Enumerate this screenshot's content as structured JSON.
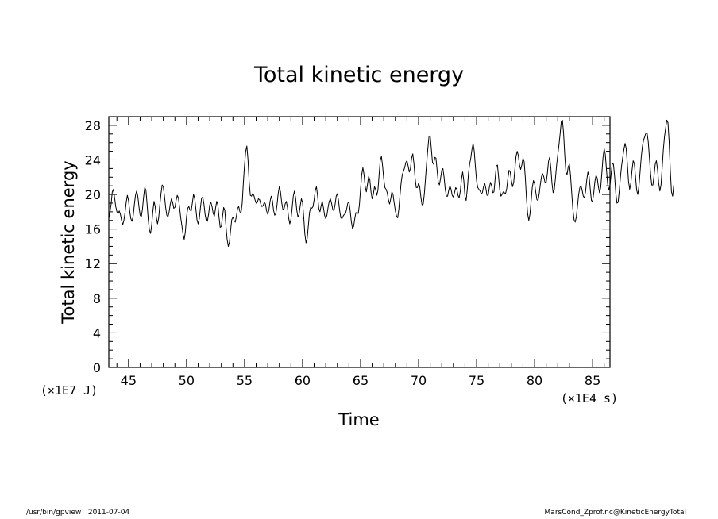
{
  "chart_data": {
    "type": "line",
    "title": "Total kinetic energy",
    "xlabel": "Time",
    "ylabel": "Total kinetic energy",
    "x_unit": "(×1E4 s)",
    "y_unit": "(×1E7 J)",
    "xlim": [
      43.3,
      86.5
    ],
    "ylim": [
      0,
      29
    ],
    "xticks": [
      45,
      50,
      55,
      60,
      65,
      70,
      75,
      80,
      85
    ],
    "yticks": [
      0,
      4,
      8,
      12,
      16,
      20,
      24,
      28
    ],
    "grid": false,
    "series": [
      {
        "x_start": 43.3,
        "x_step": 0.1,
        "values": [
          17.2,
          18.0,
          18.9,
          20.3,
          20.6,
          19.6,
          18.6,
          18.0,
          17.8,
          18.1,
          17.7,
          17.0,
          16.5,
          17.0,
          17.9,
          19.1,
          19.9,
          19.3,
          18.1,
          17.2,
          16.9,
          17.5,
          18.8,
          19.9,
          20.4,
          19.8,
          18.6,
          17.6,
          17.4,
          18.3,
          19.7,
          20.8,
          20.5,
          18.9,
          17.1,
          15.9,
          15.5,
          16.5,
          18.1,
          19.2,
          18.6,
          17.3,
          16.6,
          17.3,
          18.8,
          20.1,
          21.1,
          20.9,
          19.8,
          18.5,
          17.6,
          17.4,
          18.0,
          18.9,
          19.5,
          19.1,
          18.4,
          18.5,
          19.3,
          19.9,
          19.6,
          18.5,
          17.3,
          16.4,
          15.4,
          14.8,
          15.7,
          17.4,
          18.4,
          18.6,
          18.2,
          18.1,
          19.0,
          20.0,
          19.6,
          18.4,
          17.1,
          16.6,
          17.2,
          18.5,
          19.6,
          19.7,
          18.9,
          17.7,
          17.0,
          16.9,
          17.7,
          18.8,
          19.1,
          18.6,
          17.8,
          17.5,
          18.4,
          19.2,
          18.8,
          17.4,
          16.2,
          16.3,
          17.4,
          18.5,
          18.2,
          16.3,
          14.8,
          14.0,
          14.5,
          15.9,
          17.1,
          17.4,
          17.0,
          16.8,
          17.5,
          18.4,
          18.6,
          18.0,
          17.9,
          19.0,
          21.4,
          23.4,
          25.0,
          25.6,
          24.0,
          21.4,
          19.9,
          19.8,
          20.1,
          19.9,
          19.4,
          19.0,
          19.1,
          19.5,
          19.4,
          18.9,
          18.6,
          18.7,
          19.1,
          18.9,
          18.1,
          17.7,
          18.2,
          19.2,
          19.8,
          19.3,
          18.2,
          17.6,
          17.8,
          18.8,
          20.1,
          20.9,
          20.3,
          19.1,
          18.3,
          18.3,
          18.9,
          19.2,
          18.5,
          17.3,
          16.6,
          17.1,
          18.4,
          19.8,
          20.4,
          19.6,
          18.2,
          17.4,
          17.7,
          18.7,
          19.5,
          19.1,
          17.4,
          15.4,
          14.4,
          14.9,
          16.4,
          17.9,
          18.5,
          18.4,
          18.6,
          19.4,
          20.5,
          20.9,
          19.8,
          18.4,
          18.0,
          18.7,
          19.2,
          18.5,
          17.6,
          17.2,
          17.6,
          18.5,
          19.2,
          19.5,
          19.0,
          18.3,
          18.1,
          18.8,
          19.8,
          20.1,
          19.3,
          18.1,
          17.3,
          17.2,
          17.5,
          17.7,
          17.8,
          18.3,
          19.0,
          19.1,
          18.2,
          16.9,
          16.1,
          16.3,
          17.2,
          17.9,
          17.9,
          17.8,
          18.8,
          20.6,
          22.3,
          23.1,
          22.3,
          20.9,
          20.3,
          21.2,
          22.1,
          21.7,
          20.3,
          19.5,
          20.0,
          20.9,
          20.6,
          19.9,
          20.5,
          22.3,
          24.0,
          24.4,
          23.3,
          21.8,
          20.8,
          20.6,
          20.2,
          19.4,
          18.9,
          19.5,
          20.3,
          20.0,
          19.0,
          18.1,
          17.5,
          17.3,
          18.3,
          19.9,
          21.4,
          22.3,
          22.7,
          23.1,
          23.7,
          23.9,
          23.3,
          22.6,
          23.0,
          24.2,
          24.7,
          23.6,
          21.9,
          20.8,
          20.8,
          21.3,
          20.9,
          19.7,
          18.8,
          18.9,
          20.1,
          21.9,
          23.7,
          25.3,
          26.7,
          26.8,
          25.3,
          23.7,
          23.5,
          24.3,
          24.2,
          22.8,
          21.4,
          21.1,
          21.9,
          22.8,
          23.0,
          22.0,
          20.6,
          19.8,
          19.8,
          20.5,
          21.0,
          20.6,
          19.9,
          19.7,
          20.2,
          20.8,
          20.6,
          19.9,
          19.6,
          20.4,
          21.8,
          22.6,
          21.6,
          19.8,
          19.3,
          20.6,
          22.4,
          23.5,
          24.2,
          25.2,
          25.9,
          25.0,
          23.2,
          21.6,
          20.8,
          20.6,
          20.4,
          20.1,
          20.2,
          20.9,
          21.3,
          20.7,
          19.9,
          19.9,
          20.8,
          21.4,
          21.0,
          20.2,
          20.3,
          21.8,
          23.3,
          23.4,
          22.0,
          20.5,
          19.8,
          20.0,
          20.3,
          20.2,
          20.1,
          20.7,
          21.9,
          22.8,
          22.6,
          21.6,
          20.9,
          21.4,
          22.9,
          24.4,
          25.0,
          24.5,
          23.4,
          22.9,
          23.4,
          24.2,
          23.8,
          22.0,
          19.6,
          17.8,
          17.0,
          17.7,
          19.2,
          20.8,
          21.6,
          21.3,
          20.3,
          19.4,
          19.3,
          20.1,
          21.2,
          22.1,
          22.4,
          22.0,
          21.4,
          21.4,
          22.4,
          23.8,
          24.3,
          23.1,
          21.3,
          20.2,
          20.6,
          21.9,
          23.4,
          24.6,
          25.7,
          27.0,
          28.4,
          28.6,
          27.1,
          24.6,
          22.6,
          22.3,
          23.2,
          23.5,
          22.2,
          20.2,
          18.3,
          17.1,
          16.8,
          17.4,
          18.7,
          20.0,
          20.8,
          21.0,
          20.5,
          19.8,
          19.6,
          20.4,
          21.7,
          22.6,
          22.1,
          20.6,
          19.3,
          19.2,
          20.2,
          21.5,
          22.2,
          21.9,
          20.9,
          20.2,
          20.8,
          22.5,
          24.3,
          25.3,
          24.6,
          22.8,
          21.2,
          20.5,
          21.0,
          22.4,
          23.6,
          23.5,
          22.1,
          20.2,
          19.0,
          19.1,
          20.4,
          22.0,
          23.3,
          24.3,
          25.2,
          25.9,
          25.3,
          23.5,
          21.5,
          20.6,
          21.3,
          22.8,
          23.9,
          23.6,
          22.1,
          20.5,
          20.0,
          21.0,
          22.7,
          24.4,
          25.6,
          26.3,
          26.7,
          27.1,
          27.1,
          26.1,
          24.3,
          22.4,
          21.1,
          21.1,
          22.2,
          23.5,
          23.9,
          22.9,
          21.3,
          20.4,
          21.1,
          23.1,
          25.2,
          26.7,
          27.7,
          28.6,
          28.3,
          26.1,
          22.8,
          20.3,
          19.8,
          21.1
        ]
      }
    ]
  },
  "footer": {
    "left": "/usr/bin/gpview   2011-07-04",
    "right": "MarsCond_Zprof.nc@KineticEnergyTotal"
  }
}
